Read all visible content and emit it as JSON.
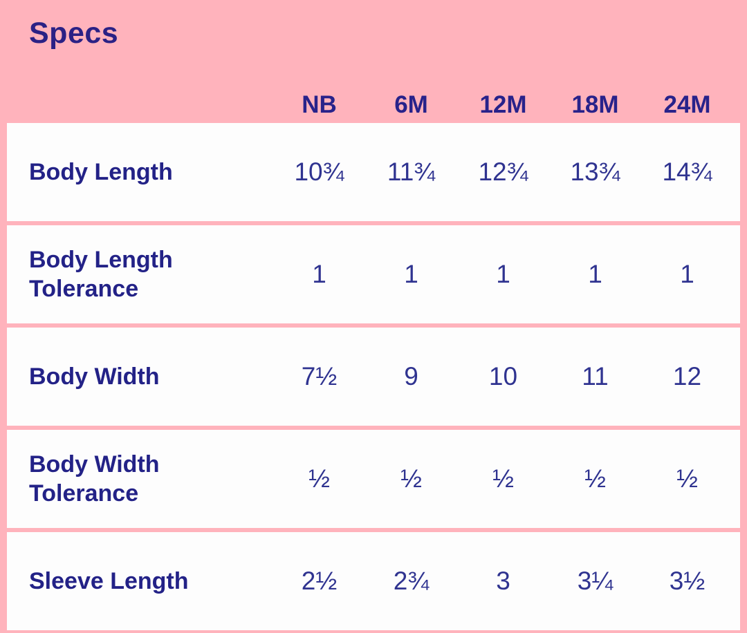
{
  "colors": {
    "header_pink": "#ffb3bc",
    "row_white": "#fdfdfd",
    "label_navy": "#232287",
    "value_navy": "#2f3390",
    "title_navy": "#2a2185"
  },
  "header": {
    "title": "Specs"
  },
  "table": {
    "columns": [
      "NB",
      "6M",
      "12M",
      "18M",
      "24M"
    ],
    "rows": [
      {
        "label": "Body Length",
        "values": [
          "10¾",
          "11¾",
          "12¾",
          "13¾",
          "14¾"
        ]
      },
      {
        "label": "Body Length Tolerance",
        "values": [
          "1",
          "1",
          "1",
          "1",
          "1"
        ]
      },
      {
        "label": "Body Width",
        "values": [
          "7½",
          "9",
          "10",
          "11",
          "12"
        ]
      },
      {
        "label": "Body Width Tolerance",
        "values": [
          "½",
          "½",
          "½",
          "½",
          "½"
        ]
      },
      {
        "label": "Sleeve Length",
        "values": [
          "2½",
          "2¾",
          "3",
          "3¼",
          "3½"
        ]
      }
    ]
  },
  "chart_data": {
    "type": "table",
    "title": "Specs",
    "columns": [
      "NB",
      "6M",
      "12M",
      "18M",
      "24M"
    ],
    "row_labels": [
      "Body Length",
      "Body Length Tolerance",
      "Body Width",
      "Body Width Tolerance",
      "Sleeve Length"
    ],
    "cells": [
      [
        "10¾",
        "11¾",
        "12¾",
        "13¾",
        "14¾"
      ],
      [
        "1",
        "1",
        "1",
        "1",
        "1"
      ],
      [
        "7½",
        "9",
        "10",
        "11",
        "12"
      ],
      [
        "½",
        "½",
        "½",
        "½",
        "½"
      ],
      [
        "2½",
        "2¾",
        "3",
        "3¼",
        "3½"
      ]
    ],
    "notes": "Garment size specification table; values in inches, fractions shown as unicode glyphs"
  }
}
